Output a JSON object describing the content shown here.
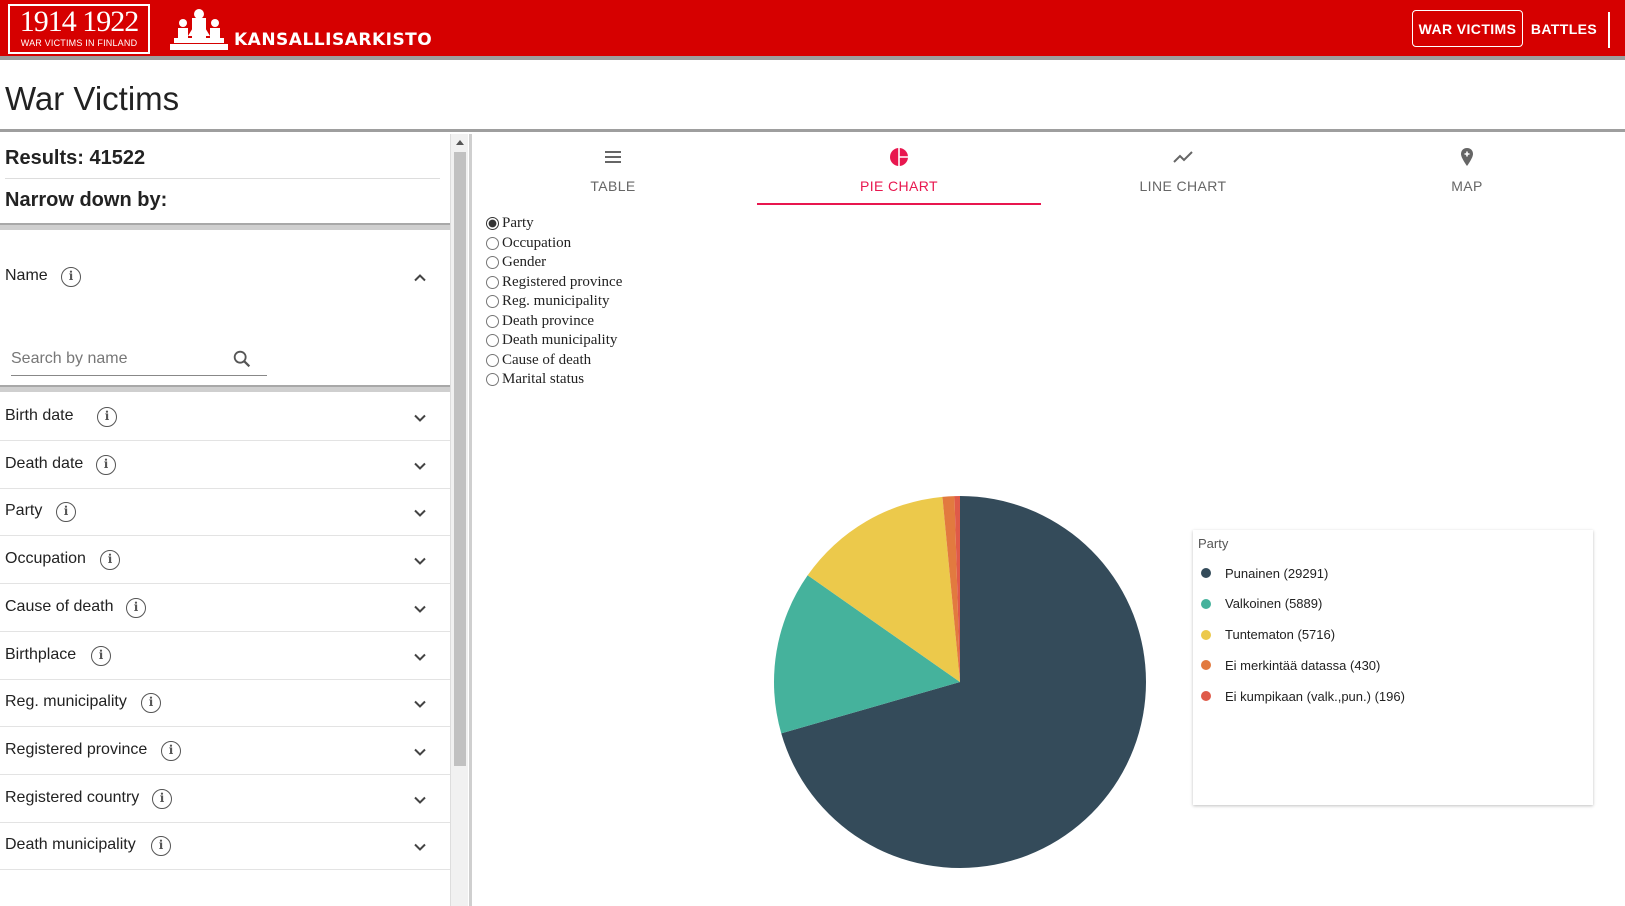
{
  "header": {
    "logo_years": "1914 1922",
    "logo_subtitle": "WAR VICTIMS IN FINLAND",
    "brand": "KANSALLISARKISTO",
    "nav": [
      {
        "label": "WAR VICTIMS"
      },
      {
        "label": "BATTLES"
      }
    ]
  },
  "page_title": "War Victims",
  "facets": {
    "results_label": "Results: 41522",
    "narrow_label": "Narrow down by:",
    "name": {
      "label": "Name",
      "search_placeholder": "Search by name"
    },
    "items": [
      {
        "label": "Birth date"
      },
      {
        "label": "Death date"
      },
      {
        "label": "Party"
      },
      {
        "label": "Occupation"
      },
      {
        "label": "Cause of death"
      },
      {
        "label": "Birthplace"
      },
      {
        "label": "Reg. municipality"
      },
      {
        "label": "Registered province"
      },
      {
        "label": "Registered country"
      },
      {
        "label": "Death municipality"
      }
    ]
  },
  "tabs": [
    {
      "label": "TABLE",
      "icon": "list-icon"
    },
    {
      "label": "PIE CHART",
      "icon": "pie-chart-icon",
      "active": true
    },
    {
      "label": "LINE CHART",
      "icon": "line-chart-icon"
    },
    {
      "label": "MAP",
      "icon": "map-pin-icon"
    }
  ],
  "grouping_options": [
    {
      "label": "Party",
      "selected": true
    },
    {
      "label": "Occupation"
    },
    {
      "label": "Gender"
    },
    {
      "label": "Registered province"
    },
    {
      "label": "Reg. municipality"
    },
    {
      "label": "Death province"
    },
    {
      "label": "Death municipality"
    },
    {
      "label": "Cause of death"
    },
    {
      "label": "Marital status"
    }
  ],
  "chart_data": {
    "type": "pie",
    "legend_title": "Party",
    "legend_position": "right",
    "slices": [
      {
        "name": "Punainen",
        "value": 29291,
        "label": "Punainen (29291)",
        "color": "#344b5a"
      },
      {
        "name": "Valkoinen",
        "value": 5889,
        "label": "Valkoinen (5889)",
        "color": "#45b29c"
      },
      {
        "name": "Tuntematon",
        "value": 5716,
        "label": "Tuntematon (5716)",
        "color": "#ecc94b"
      },
      {
        "name": "Ei merkintää datassa",
        "value": 430,
        "label": "Ei merkintää datassa (430)",
        "color": "#e27a3f"
      },
      {
        "name": "Ei kumpikaan (valk.,pun.)",
        "value": 196,
        "label": "Ei kumpikaan (valk.,pun.) (196)",
        "color": "#df5a49"
      }
    ]
  }
}
